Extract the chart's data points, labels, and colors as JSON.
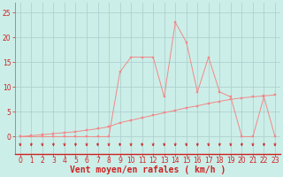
{
  "bg_color": "#cceee8",
  "grid_color": "#aacccc",
  "line_color": "#f08888",
  "arrow_color": "#cc2222",
  "xlabel": "Vent moyen/en rafales ( km/h )",
  "xlabel_fontsize": 7,
  "yticks": [
    0,
    5,
    10,
    15,
    20,
    25
  ],
  "xticks": [
    0,
    1,
    2,
    3,
    4,
    5,
    6,
    7,
    8,
    9,
    10,
    11,
    12,
    13,
    14,
    15,
    16,
    17,
    18,
    19,
    20,
    21,
    22,
    23
  ],
  "xlim": [
    -0.5,
    23.5
  ],
  "ylim": [
    -3.5,
    27
  ],
  "x_moyen": [
    0,
    1,
    2,
    3,
    4,
    5,
    6,
    7,
    8,
    9,
    10,
    11,
    12,
    13,
    14,
    15,
    16,
    17,
    18,
    19,
    20,
    21,
    22,
    23
  ],
  "y_moyen": [
    0,
    0.2,
    0.4,
    0.6,
    0.8,
    1.0,
    1.3,
    1.6,
    2.0,
    2.8,
    3.3,
    3.8,
    4.3,
    4.8,
    5.3,
    5.8,
    6.2,
    6.7,
    7.1,
    7.5,
    7.8,
    8.0,
    8.2,
    8.4
  ],
  "x_rafales": [
    0,
    1,
    2,
    3,
    4,
    5,
    6,
    7,
    8,
    9,
    10,
    11,
    12,
    13,
    14,
    15,
    16,
    17,
    18,
    19,
    20,
    21,
    22,
    23
  ],
  "y_rafales": [
    0,
    0,
    0,
    0,
    0,
    0,
    0,
    0,
    0,
    13,
    16,
    16,
    16,
    8,
    23,
    19,
    9,
    16,
    9,
    8,
    0,
    0,
    8,
    0
  ],
  "x_arrows": [
    0,
    1,
    2,
    3,
    4,
    5,
    6,
    7,
    8,
    9,
    10,
    11,
    12,
    13,
    14,
    15,
    16,
    17,
    18,
    19,
    20,
    21,
    22,
    23
  ],
  "tick_fontsize": 5.5,
  "marker_size": 2.0
}
